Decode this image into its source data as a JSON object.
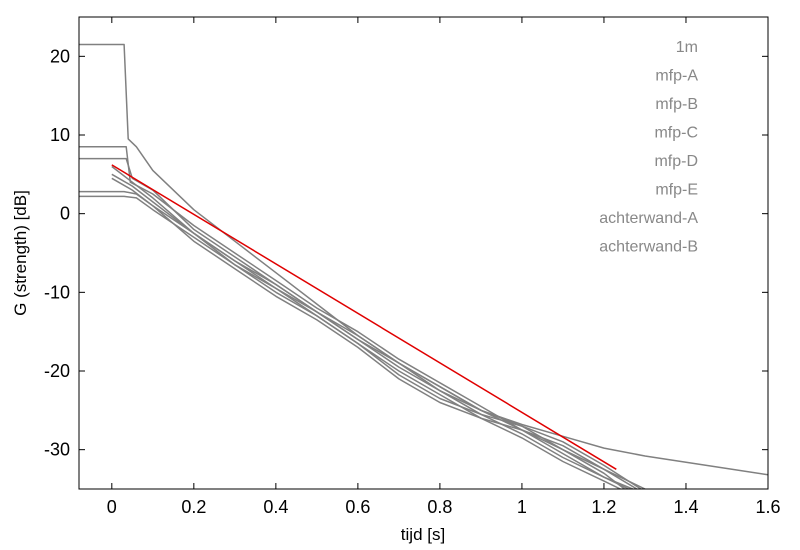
{
  "chart_data": {
    "type": "line",
    "xlabel": "tijd  [s]",
    "ylabel": "G (strength)  [dB]",
    "xlim": [
      -0.08,
      1.6
    ],
    "ylim": [
      -35,
      25
    ],
    "xticks": [
      0,
      0.2,
      0.4,
      0.6,
      0.8,
      1,
      1.2,
      1.4,
      1.6
    ],
    "xtick_labels": [
      "0",
      "0.2",
      "0.4",
      "0.6",
      "0.8",
      "1",
      "1.2",
      "1.4",
      "1.6"
    ],
    "yticks": [
      20,
      10,
      0,
      -10,
      -20,
      -30
    ],
    "ytick_labels": [
      "20",
      "10",
      "0",
      "-10",
      "-20",
      "-30"
    ],
    "grid": false,
    "legend_position": "top-right",
    "legend_color": "#888888",
    "series": [
      {
        "name": "1m",
        "color": "#808080",
        "x": [
          -0.08,
          0.0,
          0.03,
          0.04,
          0.06,
          0.1,
          0.2,
          0.3,
          0.4,
          0.5,
          0.6,
          0.7,
          0.8,
          0.9,
          1.0,
          1.1,
          1.2,
          1.3,
          1.4,
          1.5,
          1.6
        ],
        "y": [
          21.5,
          21.5,
          21.5,
          9.5,
          8.5,
          5.5,
          0.5,
          -3.5,
          -7.5,
          -11.5,
          -15.5,
          -19.0,
          -22.5,
          -25.0,
          -26.8,
          -28.3,
          -29.8,
          -30.8,
          -31.6,
          -32.4,
          -33.2
        ]
      },
      {
        "name": "mfp-A",
        "color": "#808080",
        "x": [
          -0.08,
          0.0,
          0.035,
          0.045,
          0.1,
          0.2,
          0.3,
          0.4,
          0.5,
          0.6,
          0.7,
          0.8,
          0.9,
          1.0,
          1.1,
          1.2,
          1.25
        ],
        "y": [
          8.5,
          8.5,
          8.5,
          4.0,
          2.5,
          -1.5,
          -5.0,
          -8.5,
          -12.0,
          -15.0,
          -18.5,
          -21.5,
          -24.5,
          -27.5,
          -30.0,
          -33.0,
          -35.0
        ]
      },
      {
        "name": "mfp-B",
        "color": "#808080",
        "x": [
          -0.08,
          0.0,
          0.035,
          0.05,
          0.1,
          0.2,
          0.3,
          0.4,
          0.5,
          0.6,
          0.7,
          0.8,
          0.9,
          1.0,
          1.1,
          1.2,
          1.26
        ],
        "y": [
          7.0,
          7.0,
          7.0,
          4.5,
          3.0,
          -2.0,
          -5.5,
          -9.0,
          -12.5,
          -15.5,
          -19.0,
          -22.0,
          -25.0,
          -27.5,
          -30.5,
          -33.5,
          -35.0
        ]
      },
      {
        "name": "mfp-C",
        "color": "#808080",
        "x": [
          -0.08,
          0.0,
          0.03,
          0.06,
          0.1,
          0.2,
          0.3,
          0.4,
          0.5,
          0.6,
          0.7,
          0.8,
          0.9,
          1.0,
          1.1,
          1.2,
          1.27
        ],
        "y": [
          2.8,
          2.8,
          2.8,
          2.5,
          1.0,
          -2.5,
          -6.0,
          -9.5,
          -12.5,
          -16.0,
          -19.5,
          -22.5,
          -25.5,
          -28.0,
          -31.0,
          -33.5,
          -35.0
        ]
      },
      {
        "name": "mfp-D",
        "color": "#808080",
        "x": [
          -0.08,
          0.0,
          0.03,
          0.06,
          0.1,
          0.2,
          0.3,
          0.4,
          0.5,
          0.6,
          0.7,
          0.8,
          0.9,
          1.0,
          1.1,
          1.2,
          1.24
        ],
        "y": [
          2.2,
          2.2,
          2.2,
          2.0,
          0.5,
          -3.0,
          -6.5,
          -9.5,
          -13.0,
          -16.5,
          -20.0,
          -23.0,
          -26.0,
          -28.5,
          -31.5,
          -34.0,
          -35.0
        ]
      },
      {
        "name": "mfp-E",
        "color": "#808080",
        "x": [
          0.0,
          0.05,
          0.1,
          0.2,
          0.3,
          0.4,
          0.5,
          0.6,
          0.7,
          0.8,
          0.9,
          1.0,
          1.1,
          1.2,
          1.28
        ],
        "y": [
          6.0,
          4.0,
          2.0,
          -2.5,
          -6.0,
          -9.0,
          -12.5,
          -16.0,
          -19.0,
          -22.0,
          -25.0,
          -27.0,
          -30.0,
          -32.5,
          -35.0
        ]
      },
      {
        "name": "achterwand-A",
        "color": "#808080",
        "x": [
          0.0,
          0.05,
          0.1,
          0.2,
          0.3,
          0.4,
          0.5,
          0.6,
          0.7,
          0.8,
          0.9,
          1.0,
          1.1,
          1.2,
          1.29
        ],
        "y": [
          5.0,
          3.5,
          1.5,
          -2.5,
          -6.5,
          -10.0,
          -13.0,
          -16.5,
          -20.5,
          -23.5,
          -25.5,
          -27.0,
          -29.0,
          -32.0,
          -35.0
        ]
      },
      {
        "name": "achterwand-B",
        "color": "#808080",
        "x": [
          0.0,
          0.05,
          0.1,
          0.2,
          0.3,
          0.4,
          0.5,
          0.6,
          0.7,
          0.8,
          0.9,
          1.0,
          1.1,
          1.2,
          1.3
        ],
        "y": [
          4.5,
          3.0,
          1.0,
          -3.5,
          -7.0,
          -10.5,
          -13.5,
          -17.0,
          -21.0,
          -24.0,
          -26.0,
          -27.5,
          -29.5,
          -32.5,
          -35.0
        ]
      },
      {
        "color": "#e00000",
        "x": [
          0.0,
          1.23
        ],
        "y": [
          6.2,
          -32.5
        ]
      }
    ]
  }
}
